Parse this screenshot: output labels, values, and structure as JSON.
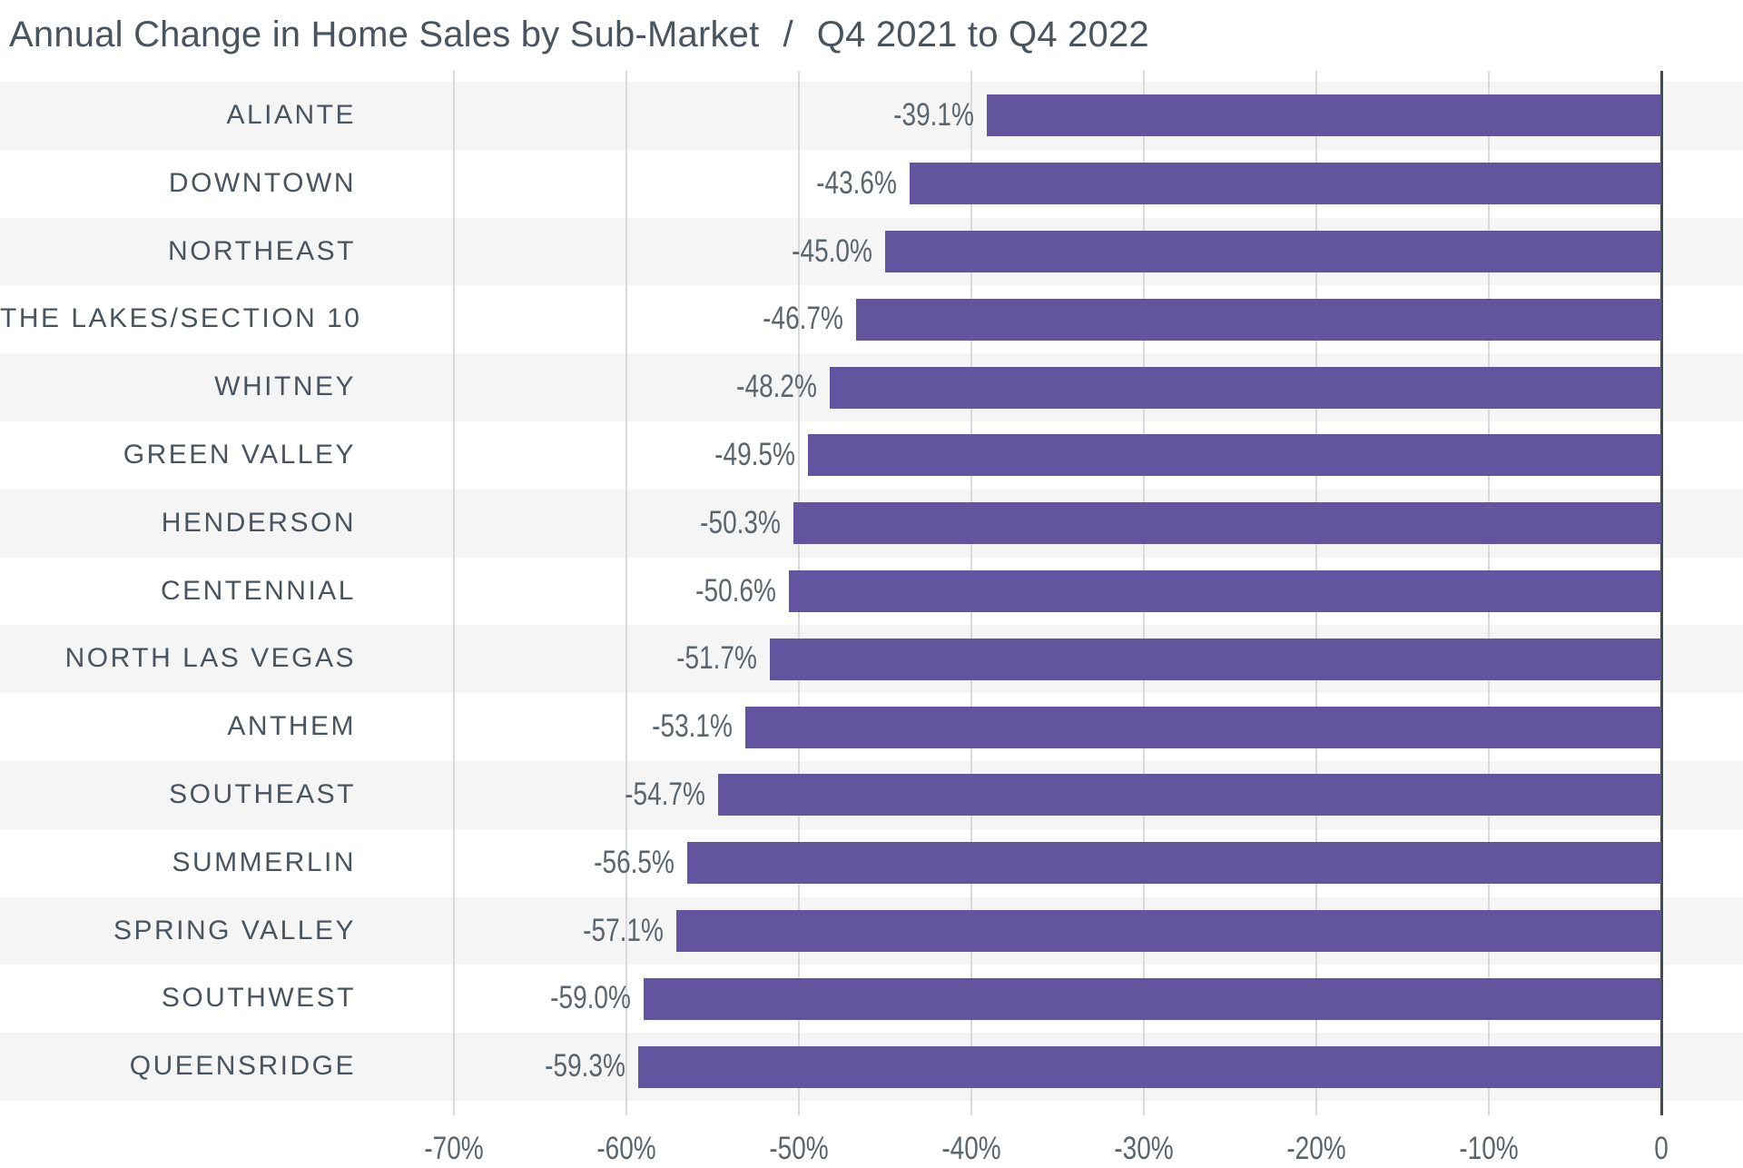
{
  "header": {
    "title": "Annual Change in Home Sales by Sub-Market",
    "separator": "/",
    "subtitle": "Q4 2021 to Q4 2022"
  },
  "chart_data": {
    "type": "bar",
    "orientation": "horizontal",
    "title": "Annual Change in Home Sales by Sub-Market / Q4 2021 to Q4 2022",
    "categories": [
      "ALIANTE",
      "DOWNTOWN",
      "NORTHEAST",
      "THE LAKES/SECTION 10",
      "WHITNEY",
      "GREEN VALLEY",
      "HENDERSON",
      "CENTENNIAL",
      "NORTH LAS VEGAS",
      "ANTHEM",
      "SOUTHEAST",
      "SUMMERLIN",
      "SPRING VALLEY",
      "SOUTHWEST",
      "QUEENSRIDGE"
    ],
    "values": [
      -39.1,
      -43.6,
      -45.0,
      -46.7,
      -48.2,
      -49.5,
      -50.3,
      -50.6,
      -51.7,
      -53.1,
      -54.7,
      -56.5,
      -57.1,
      -59.0,
      -59.3
    ],
    "value_labels": [
      "-39.1%",
      "-43.6%",
      "-45.0%",
      "-46.7%",
      "-48.2%",
      "-49.5%",
      "-50.3%",
      "-50.6%",
      "-51.7%",
      "-53.1%",
      "-54.7%",
      "-56.5%",
      "-57.1%",
      "-59.0%",
      "-59.3%"
    ],
    "x_ticks": [
      {
        "value": -70,
        "label": "-70%"
      },
      {
        "value": -60,
        "label": "-60%"
      },
      {
        "value": -50,
        "label": "-50%"
      },
      {
        "value": -40,
        "label": "-40%"
      },
      {
        "value": -30,
        "label": "-30%"
      },
      {
        "value": -20,
        "label": "-20%"
      },
      {
        "value": -10,
        "label": "-10%"
      },
      {
        "value": 0,
        "label": "0"
      }
    ],
    "xlim": [
      -75,
      0
    ],
    "grid": true,
    "legend": false
  },
  "colors": {
    "bar": "#62549f",
    "stripe": "#f5f5f6",
    "gridline": "#d9d9de",
    "zero_axis": "#3f4a53",
    "title_text": "#4a545e",
    "category_text": "#4a545e",
    "value_text": "#5b656e"
  }
}
